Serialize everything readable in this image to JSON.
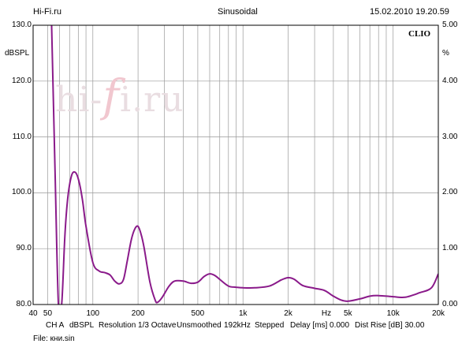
{
  "header": {
    "site": "Hi-Fi.ru",
    "mode": "Sinusoidal",
    "datetime": "15.02.2010 19.20.59"
  },
  "brand": "CLIO",
  "watermark": "hi-fi.ru",
  "y_unit_left": "dBSPL",
  "y_unit_right": "%",
  "x_unit": "Hz",
  "y_ticks_left": [
    "130.0",
    "120.0",
    "110.0",
    "100.0",
    "90.0",
    "80.0"
  ],
  "y_ticks_right": [
    "5.00",
    "4.00",
    "3.00",
    "2.00",
    "1.00",
    "0.00"
  ],
  "x_ticks": [
    {
      "label": "40",
      "hz": 40
    },
    {
      "label": "50",
      "hz": 50
    },
    {
      "label": "100",
      "hz": 100
    },
    {
      "label": "200",
      "hz": 200
    },
    {
      "label": "500",
      "hz": 500
    },
    {
      "label": "1k",
      "hz": 1000
    },
    {
      "label": "2k",
      "hz": 2000
    },
    {
      "label": "5k",
      "hz": 5000
    },
    {
      "label": "10k",
      "hz": 10000
    },
    {
      "label": "20k",
      "hz": 20000
    }
  ],
  "info_line": {
    "channel": "CH A",
    "unit": "dBSPL",
    "resolution": "Resolution 1/3 Octave",
    "smoothing": "Unsmoothed",
    "rate": "192kHz",
    "stepping": "Stepped",
    "delay": "Delay [ms] 0.000",
    "dist": "Dist Rise [dB] 30.00"
  },
  "file": "File: кни.sin",
  "colors": {
    "curve": "#8a1a8a",
    "grid": "#999999",
    "frame": "#000000"
  },
  "chart_data": {
    "type": "line",
    "xscale": "log",
    "xlim": [
      40,
      20000
    ],
    "ylim": [
      80,
      130
    ],
    "y2lim": [
      0,
      5
    ],
    "grid": true,
    "series": [
      {
        "x": [
          53,
          56,
          59,
          62,
          65,
          68,
          72,
          76,
          80,
          85,
          90,
          100,
          110,
          120,
          130,
          140,
          150,
          160,
          170,
          180,
          190,
          200,
          210,
          220,
          240,
          260,
          270,
          290,
          320,
          350,
          400,
          450,
          500,
          550,
          600,
          650,
          700,
          800,
          900,
          1000,
          1200,
          1500,
          1800,
          2000,
          2200,
          2500,
          3000,
          3500,
          4000,
          4500,
          5000,
          6000,
          7000,
          8000,
          10000,
          12000,
          15000,
          18000,
          20000
        ],
        "y": [
          131,
          104,
          80,
          80,
          92,
          99,
          103,
          103.7,
          102.5,
          99,
          94,
          87.5,
          86,
          85.7,
          85.3,
          84.2,
          83.7,
          84.5,
          88,
          91.5,
          93.5,
          94,
          92.5,
          90,
          84,
          80.8,
          80.4,
          81.3,
          83.2,
          84.2,
          84.2,
          83.8,
          84,
          85,
          85.5,
          85.2,
          84.5,
          83.3,
          83.1,
          83,
          83,
          83.3,
          84.4,
          84.8,
          84.5,
          83.4,
          82.9,
          82.5,
          81.5,
          80.8,
          80.6,
          81,
          81.5,
          81.6,
          81.4,
          81.3,
          82.1,
          83,
          85.5
        ]
      }
    ]
  }
}
